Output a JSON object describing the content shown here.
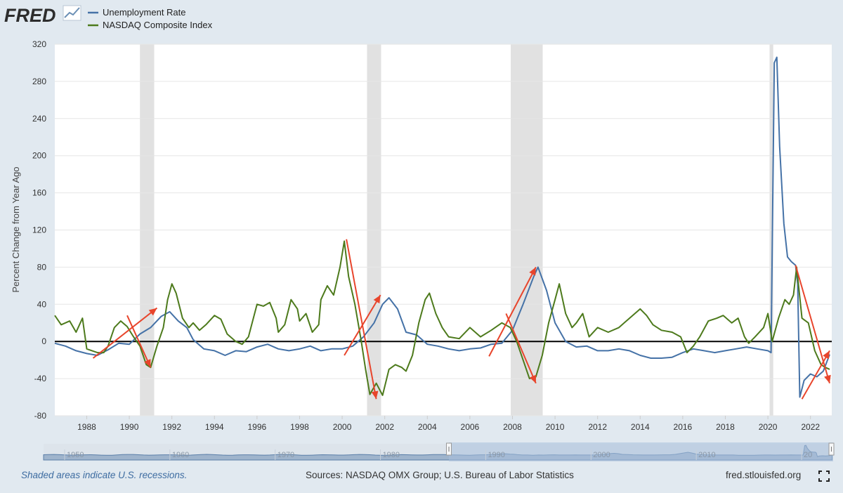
{
  "brand": {
    "name": "FRED"
  },
  "footer": {
    "recession_note": "Shaded areas indicate U.S. recessions.",
    "sources": "Sources: NASDAQ OMX Group; U.S. Bureau of Labor Statistics",
    "site": "fred.stlouisfed.org",
    "fullscreen_icon": "fullscreen-icon"
  },
  "colors": {
    "unemployment": "#4572a7",
    "nasdaq": "#4d7a1c",
    "annotation": "#e8452c",
    "recession": "#e1e1e1",
    "background": "#e1e9f0"
  },
  "chart_data": {
    "type": "line",
    "title": "",
    "xlabel": "",
    "ylabel": "Percent Change from Year Ago",
    "xlim": [
      1986.5,
      2023.0
    ],
    "ylim": [
      -80,
      320
    ],
    "yticks": [
      -80,
      -40,
      0,
      40,
      80,
      120,
      160,
      200,
      240,
      280,
      320
    ],
    "xticks": [
      1988,
      1990,
      1992,
      1994,
      1996,
      1998,
      2000,
      2002,
      2004,
      2006,
      2008,
      2010,
      2012,
      2014,
      2016,
      2018,
      2020,
      2022
    ],
    "recessions": [
      [
        1990.5,
        1991.17
      ],
      [
        2001.17,
        2001.83
      ],
      [
        2007.92,
        2009.42
      ],
      [
        2020.08,
        2020.25
      ]
    ],
    "series": [
      {
        "name": "Unemployment Rate",
        "color": "#4572a7",
        "points": [
          [
            1986.5,
            -2
          ],
          [
            1987,
            -5
          ],
          [
            1987.5,
            -10
          ],
          [
            1988,
            -13
          ],
          [
            1988.5,
            -15
          ],
          [
            1989,
            -9
          ],
          [
            1989.5,
            -2
          ],
          [
            1990,
            -3
          ],
          [
            1990.5,
            8
          ],
          [
            1991,
            15
          ],
          [
            1991.5,
            27
          ],
          [
            1991.9,
            32
          ],
          [
            1992.3,
            22
          ],
          [
            1992.7,
            15
          ],
          [
            1993,
            2
          ],
          [
            1993.5,
            -8
          ],
          [
            1994,
            -10
          ],
          [
            1994.5,
            -15
          ],
          [
            1995,
            -10
          ],
          [
            1995.5,
            -11
          ],
          [
            1996,
            -6
          ],
          [
            1996.5,
            -3
          ],
          [
            1997,
            -8
          ],
          [
            1997.5,
            -10
          ],
          [
            1998,
            -8
          ],
          [
            1998.5,
            -5
          ],
          [
            1999,
            -10
          ],
          [
            1999.5,
            -8
          ],
          [
            2000,
            -8
          ],
          [
            2000.5,
            -5
          ],
          [
            2001,
            5
          ],
          [
            2001.5,
            20
          ],
          [
            2001.9,
            40
          ],
          [
            2002.2,
            47
          ],
          [
            2002.6,
            35
          ],
          [
            2003,
            10
          ],
          [
            2003.5,
            7
          ],
          [
            2004,
            -3
          ],
          [
            2004.5,
            -5
          ],
          [
            2005,
            -8
          ],
          [
            2005.5,
            -10
          ],
          [
            2006,
            -8
          ],
          [
            2006.5,
            -7
          ],
          [
            2007,
            -3
          ],
          [
            2007.5,
            -2
          ],
          [
            2008,
            12
          ],
          [
            2008.5,
            40
          ],
          [
            2009,
            70
          ],
          [
            2009.2,
            80
          ],
          [
            2009.6,
            55
          ],
          [
            2010,
            20
          ],
          [
            2010.5,
            0
          ],
          [
            2011,
            -6
          ],
          [
            2011.5,
            -5
          ],
          [
            2012,
            -10
          ],
          [
            2012.5,
            -10
          ],
          [
            2013,
            -8
          ],
          [
            2013.5,
            -10
          ],
          [
            2014,
            -15
          ],
          [
            2014.5,
            -18
          ],
          [
            2015,
            -18
          ],
          [
            2015.5,
            -17
          ],
          [
            2016,
            -12
          ],
          [
            2016.5,
            -8
          ],
          [
            2017,
            -10
          ],
          [
            2017.5,
            -12
          ],
          [
            2018,
            -10
          ],
          [
            2018.5,
            -8
          ],
          [
            2019,
            -6
          ],
          [
            2019.5,
            -8
          ],
          [
            2020,
            -10
          ],
          [
            2020.15,
            -12
          ],
          [
            2020.3,
            300
          ],
          [
            2020.42,
            306
          ],
          [
            2020.55,
            210
          ],
          [
            2020.75,
            127
          ],
          [
            2020.92,
            91
          ],
          [
            2021.1,
            86
          ],
          [
            2021.3,
            82
          ],
          [
            2021.4,
            62
          ],
          [
            2021.5,
            -60
          ],
          [
            2021.7,
            -42
          ],
          [
            2022,
            -35
          ],
          [
            2022.3,
            -38
          ],
          [
            2022.6,
            -32
          ],
          [
            2022.9,
            -14
          ]
        ]
      },
      {
        "name": "NASDAQ Composite Index",
        "color": "#4d7a1c",
        "points": [
          [
            1986.5,
            28
          ],
          [
            1986.8,
            18
          ],
          [
            1987.2,
            22
          ],
          [
            1987.5,
            10
          ],
          [
            1987.8,
            25
          ],
          [
            1988,
            -8
          ],
          [
            1988.5,
            -12
          ],
          [
            1988.8,
            -12
          ],
          [
            1989,
            -5
          ],
          [
            1989.3,
            15
          ],
          [
            1989.6,
            22
          ],
          [
            1989.9,
            16
          ],
          [
            1990.2,
            5
          ],
          [
            1990.5,
            -5
          ],
          [
            1990.8,
            -25
          ],
          [
            1991,
            -28
          ],
          [
            1991.3,
            -5
          ],
          [
            1991.6,
            15
          ],
          [
            1991.8,
            45
          ],
          [
            1992,
            62
          ],
          [
            1992.2,
            52
          ],
          [
            1992.5,
            25
          ],
          [
            1992.8,
            15
          ],
          [
            1993,
            20
          ],
          [
            1993.3,
            12
          ],
          [
            1993.6,
            18
          ],
          [
            1994,
            28
          ],
          [
            1994.3,
            24
          ],
          [
            1994.6,
            8
          ],
          [
            1995,
            0
          ],
          [
            1995.3,
            -3
          ],
          [
            1995.6,
            5
          ],
          [
            1996,
            40
          ],
          [
            1996.3,
            38
          ],
          [
            1996.6,
            42
          ],
          [
            1996.9,
            25
          ],
          [
            1997,
            10
          ],
          [
            1997.3,
            18
          ],
          [
            1997.6,
            45
          ],
          [
            1997.9,
            35
          ],
          [
            1998,
            22
          ],
          [
            1998.3,
            30
          ],
          [
            1998.6,
            10
          ],
          [
            1998.9,
            18
          ],
          [
            1999,
            45
          ],
          [
            1999.3,
            60
          ],
          [
            1999.6,
            50
          ],
          [
            1999.9,
            80
          ],
          [
            2000.1,
            108
          ],
          [
            2000.3,
            70
          ],
          [
            2000.6,
            40
          ],
          [
            2000.9,
            0
          ],
          [
            2001.1,
            -30
          ],
          [
            2001.3,
            -57
          ],
          [
            2001.6,
            -45
          ],
          [
            2001.9,
            -58
          ],
          [
            2002.2,
            -30
          ],
          [
            2002.5,
            -25
          ],
          [
            2002.8,
            -28
          ],
          [
            2003,
            -32
          ],
          [
            2003.3,
            -15
          ],
          [
            2003.6,
            20
          ],
          [
            2003.9,
            45
          ],
          [
            2004.1,
            52
          ],
          [
            2004.4,
            30
          ],
          [
            2004.7,
            15
          ],
          [
            2005,
            5
          ],
          [
            2005.5,
            3
          ],
          [
            2006,
            15
          ],
          [
            2006.5,
            5
          ],
          [
            2007,
            12
          ],
          [
            2007.5,
            20
          ],
          [
            2007.9,
            15
          ],
          [
            2008.2,
            0
          ],
          [
            2008.5,
            -20
          ],
          [
            2008.8,
            -40
          ],
          [
            2009.1,
            -38
          ],
          [
            2009.4,
            -15
          ],
          [
            2009.7,
            20
          ],
          [
            2010,
            45
          ],
          [
            2010.2,
            62
          ],
          [
            2010.5,
            30
          ],
          [
            2010.8,
            15
          ],
          [
            2011,
            20
          ],
          [
            2011.3,
            30
          ],
          [
            2011.6,
            5
          ],
          [
            2012,
            15
          ],
          [
            2012.5,
            10
          ],
          [
            2013,
            15
          ],
          [
            2013.5,
            25
          ],
          [
            2014,
            35
          ],
          [
            2014.3,
            28
          ],
          [
            2014.6,
            18
          ],
          [
            2015,
            12
          ],
          [
            2015.5,
            10
          ],
          [
            2015.9,
            5
          ],
          [
            2016.2,
            -12
          ],
          [
            2016.5,
            -5
          ],
          [
            2016.8,
            5
          ],
          [
            2017.2,
            22
          ],
          [
            2017.6,
            25
          ],
          [
            2017.9,
            28
          ],
          [
            2018.3,
            20
          ],
          [
            2018.6,
            25
          ],
          [
            2018.9,
            5
          ],
          [
            2019.1,
            -2
          ],
          [
            2019.4,
            5
          ],
          [
            2019.8,
            15
          ],
          [
            2020,
            30
          ],
          [
            2020.2,
            0
          ],
          [
            2020.5,
            25
          ],
          [
            2020.8,
            45
          ],
          [
            2021,
            40
          ],
          [
            2021.2,
            50
          ],
          [
            2021.35,
            80
          ],
          [
            2021.6,
            25
          ],
          [
            2021.9,
            20
          ],
          [
            2022.2,
            -10
          ],
          [
            2022.5,
            -25
          ],
          [
            2022.7,
            -28
          ],
          [
            2022.9,
            -30
          ]
        ]
      }
    ],
    "annotations": [
      [
        1988.3,
        -18,
        1991.3,
        36
      ],
      [
        1989.9,
        28,
        1991.0,
        -28
      ],
      [
        2000.1,
        -15,
        2001.8,
        50
      ],
      [
        2000.2,
        110,
        2001.6,
        -62
      ],
      [
        2006.9,
        -16,
        2009.1,
        80
      ],
      [
        2007.7,
        30,
        2009.1,
        -45
      ],
      [
        2021.3,
        82,
        2022.9,
        -45
      ],
      [
        2021.6,
        -62,
        2022.9,
        -10
      ]
    ],
    "overview": {
      "ticks": [
        "1950",
        "1960",
        "1970",
        "1980",
        "1990",
        "2000",
        "2010",
        "20"
      ],
      "range": [
        1948,
        2023
      ],
      "selected": [
        1986.5,
        2023.0
      ]
    }
  }
}
